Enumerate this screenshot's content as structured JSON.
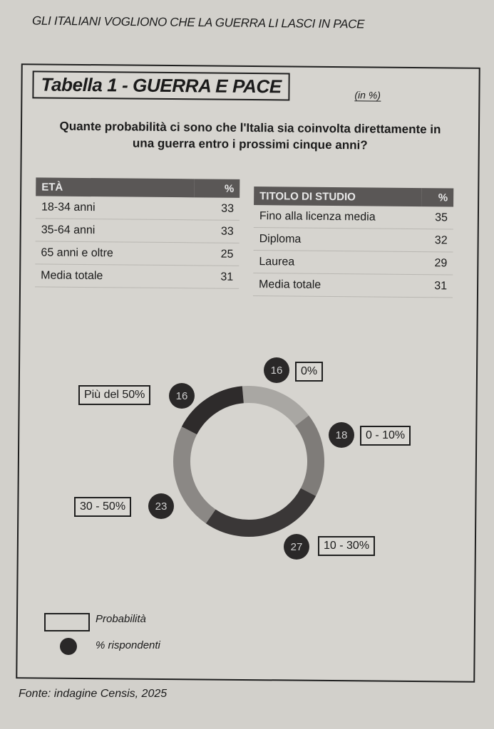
{
  "header": "GLI ITALIANI VOGLIONO CHE LA GUERRA LI LASCI IN PACE",
  "title": "Tabella 1 - GUERRA E PACE",
  "unit": "(in %)",
  "question": "Quante probabilità ci sono che l'Italia sia coinvolta direttamente in una guerra entro i prossimi cinque anni?",
  "age_table": {
    "header": "ETÀ",
    "pct": "%",
    "rows": [
      {
        "label": "18-34 anni",
        "value": "33"
      },
      {
        "label": "35-64 anni",
        "value": "33"
      },
      {
        "label": "65 anni e oltre",
        "value": "25"
      },
      {
        "label": "Media totale",
        "value": "31"
      }
    ]
  },
  "edu_table": {
    "header": "TITOLO DI STUDIO",
    "pct": "%",
    "rows": [
      {
        "label": "Fino alla licenza media",
        "value": "35"
      },
      {
        "label": "Diploma",
        "value": "32"
      },
      {
        "label": "Laurea",
        "value": "29"
      },
      {
        "label": "Media totale",
        "value": "31"
      }
    ]
  },
  "chart_data": {
    "type": "pie",
    "categories": [
      "0%",
      "0 - 10%",
      "10 - 30%",
      "30 - 50%",
      "Più del 50%"
    ],
    "values": [
      16,
      18,
      27,
      23,
      16
    ],
    "legend": [
      "Probabilità",
      "% rispondenti"
    ],
    "colors": [
      "#a9a7a3",
      "#7f7c79",
      "#3a3737",
      "#8b8885",
      "#2e2b2b"
    ]
  },
  "source": "Fonte: indagine Censis, 2025"
}
